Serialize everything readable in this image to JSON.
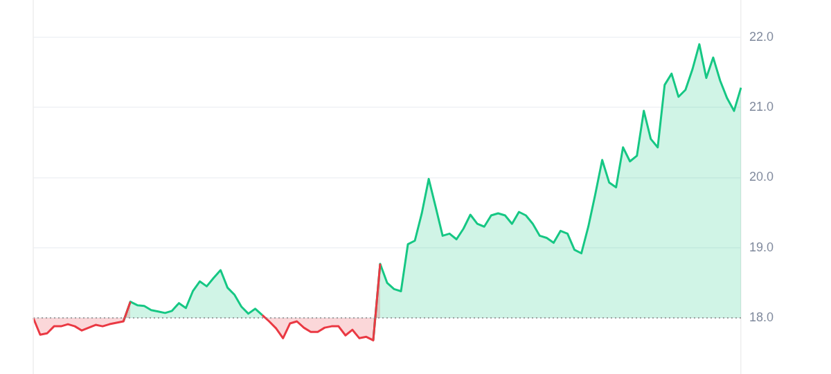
{
  "chart_data": {
    "type": "area",
    "categories": [
      null,
      null,
      null,
      null,
      null,
      null,
      null,
      null,
      null,
      null,
      null,
      null,
      null,
      null,
      null,
      null,
      null,
      null,
      null,
      null,
      null,
      null,
      null,
      null,
      null,
      null,
      null,
      null,
      null,
      null,
      null,
      null,
      null,
      null,
      null,
      null,
      null,
      null,
      null,
      null,
      null,
      null,
      null,
      null,
      null,
      null,
      null,
      null,
      null,
      null,
      null,
      null,
      null,
      null,
      null,
      null,
      null,
      null,
      null,
      null,
      null,
      null,
      null,
      null,
      null,
      null,
      null,
      null,
      null,
      null,
      null,
      null,
      null,
      null,
      null,
      null,
      null,
      null,
      null,
      null,
      null,
      null,
      null,
      null,
      null,
      null,
      null,
      null,
      null,
      null,
      null,
      null,
      null,
      null,
      null,
      null,
      null,
      null,
      null,
      null,
      null,
      null,
      null
    ],
    "series": [
      {
        "color": "#ea3943",
        "values": [
          18.0,
          17.76,
          17.78,
          17.88,
          17.88,
          17.91,
          17.88,
          17.82,
          17.86,
          17.9,
          17.88,
          17.91,
          17.93,
          17.95,
          18.23,
          null,
          null,
          null,
          null,
          null,
          null,
          null,
          null,
          null,
          null,
          null,
          null,
          null,
          null,
          null,
          null,
          null,
          null,
          null,
          null,
          null,
          null,
          null,
          null,
          null,
          null,
          null,
          null,
          null,
          null,
          null,
          null,
          null,
          null,
          null,
          null,
          null,
          null,
          null,
          null,
          null,
          null,
          null,
          null,
          null,
          null,
          null,
          null,
          null,
          null,
          null,
          null,
          null,
          null,
          null,
          null,
          null,
          null,
          null,
          null,
          null,
          null,
          null,
          null,
          null,
          null,
          null,
          null,
          null,
          null,
          null,
          null,
          null,
          null,
          null,
          null,
          null,
          null,
          null,
          null,
          null,
          null,
          null,
          null,
          null,
          null,
          null,
          null
        ]
      },
      {
        "color": "#16c784",
        "values": [
          null,
          null,
          null,
          null,
          null,
          null,
          null,
          null,
          null,
          null,
          null,
          null,
          null,
          17.95,
          18.23,
          18.18,
          18.17,
          18.11,
          18.09,
          18.07,
          18.1,
          18.21,
          18.14,
          18.38,
          18.52,
          18.45,
          18.57,
          18.68,
          18.43,
          18.33,
          18.16,
          18.06,
          18.13,
          18.04,
          null,
          null,
          null,
          null,
          null,
          null,
          null,
          null,
          null,
          null,
          null,
          null,
          null,
          null,
          null,
          null,
          null,
          null,
          null,
          null,
          null,
          null,
          null,
          null,
          null,
          null,
          null,
          null,
          null,
          null,
          null,
          null,
          null,
          null,
          null,
          null,
          null,
          null,
          null,
          null,
          null,
          null,
          null,
          null,
          null,
          null,
          null,
          null,
          null,
          null,
          null,
          null,
          null,
          null,
          null,
          null,
          null,
          null,
          null,
          null,
          null,
          null,
          null,
          null,
          null,
          null,
          null,
          null,
          null
        ]
      },
      {
        "color": "#ea3943",
        "values": [
          null,
          null,
          null,
          null,
          null,
          null,
          null,
          null,
          null,
          null,
          null,
          null,
          null,
          null,
          null,
          null,
          null,
          null,
          null,
          null,
          null,
          null,
          null,
          null,
          null,
          null,
          null,
          null,
          null,
          null,
          null,
          null,
          null,
          18.04,
          17.95,
          17.85,
          17.71,
          17.92,
          17.95,
          17.86,
          17.8,
          17.8,
          17.86,
          17.88,
          17.88,
          17.75,
          17.83,
          17.71,
          17.73,
          17.68,
          18.77,
          null,
          null,
          null,
          null,
          null,
          null,
          null,
          null,
          null,
          null,
          null,
          null,
          null,
          null,
          null,
          null,
          null,
          null,
          null,
          null,
          null,
          null,
          null,
          null,
          null,
          null,
          null,
          null,
          null,
          null,
          null,
          null,
          null,
          null,
          null,
          null,
          null,
          null,
          null,
          null,
          null,
          null,
          null,
          null,
          null,
          null,
          null,
          null,
          null,
          null,
          null,
          null
        ]
      },
      {
        "color": "#16c784",
        "values": [
          null,
          null,
          null,
          null,
          null,
          null,
          null,
          null,
          null,
          null,
          null,
          null,
          null,
          null,
          null,
          null,
          null,
          null,
          null,
          null,
          null,
          null,
          null,
          null,
          null,
          null,
          null,
          null,
          null,
          null,
          null,
          null,
          null,
          null,
          null,
          null,
          null,
          null,
          null,
          null,
          null,
          null,
          null,
          null,
          null,
          null,
          null,
          null,
          null,
          17.68,
          18.77,
          18.5,
          18.41,
          18.38,
          19.05,
          19.1,
          19.49,
          19.98,
          19.58,
          19.17,
          19.2,
          19.12,
          19.27,
          19.47,
          19.34,
          19.3,
          19.46,
          19.49,
          19.46,
          19.34,
          19.51,
          19.46,
          19.34,
          19.17,
          19.14,
          19.07,
          19.24,
          19.2,
          18.97,
          18.92,
          19.3,
          19.76,
          20.25,
          19.93,
          19.86,
          20.43,
          20.23,
          20.31,
          20.95,
          20.55,
          20.43,
          21.32,
          21.48,
          21.15,
          21.25,
          21.54,
          21.9,
          21.42,
          21.71,
          21.38,
          21.13,
          20.95,
          21.28
        ]
      }
    ],
    "ylim": [
      17.2,
      22.53
    ],
    "yticks": [
      {
        "value": 18,
        "label": "18.0"
      },
      {
        "value": 19,
        "label": "19.0"
      },
      {
        "value": 20,
        "label": "20.0"
      },
      {
        "value": 21,
        "label": "21.0"
      },
      {
        "value": 22,
        "label": "22.0"
      }
    ],
    "ref_lines": [
      {
        "axis": "y",
        "value": 18,
        "color": "#888888",
        "line_style": "dotted"
      }
    ],
    "grid": "y",
    "legend": false,
    "marker": "none",
    "line_style": "solid"
  }
}
